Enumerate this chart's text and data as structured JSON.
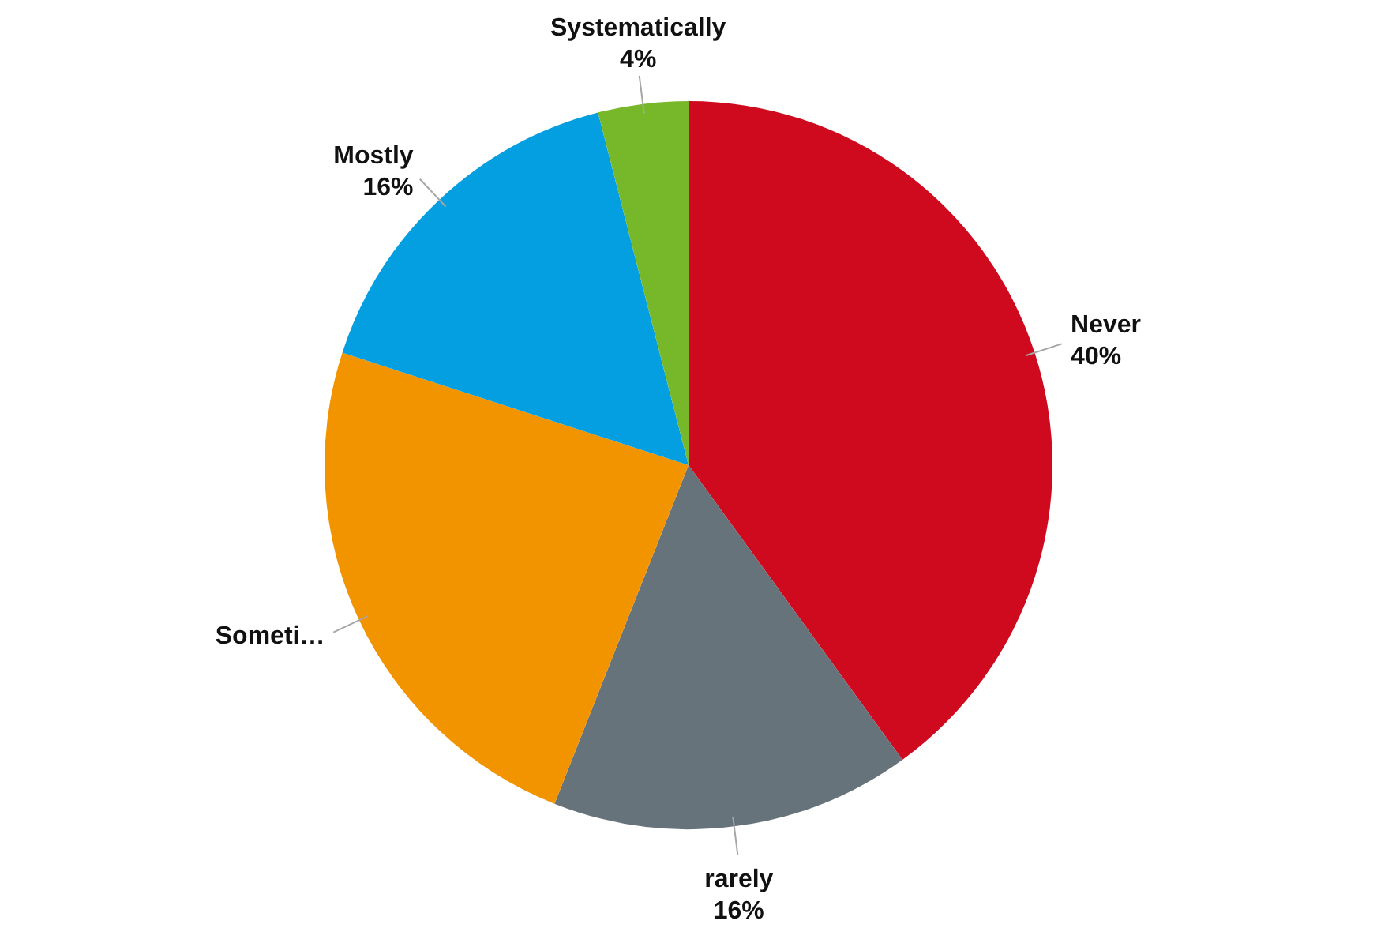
{
  "chart_data": {
    "type": "pie",
    "categories": [
      "Never",
      "rarely",
      "Someti…",
      "Mostly",
      "Systematically"
    ],
    "values": [
      40,
      16,
      24,
      16,
      4
    ],
    "colors": [
      "#cf0a1e",
      "#67737a",
      "#f29400",
      "#039fe0",
      "#77b82a"
    ],
    "value_labels": [
      "40%",
      "16%",
      null,
      "16%",
      "4%"
    ],
    "legend": false
  }
}
